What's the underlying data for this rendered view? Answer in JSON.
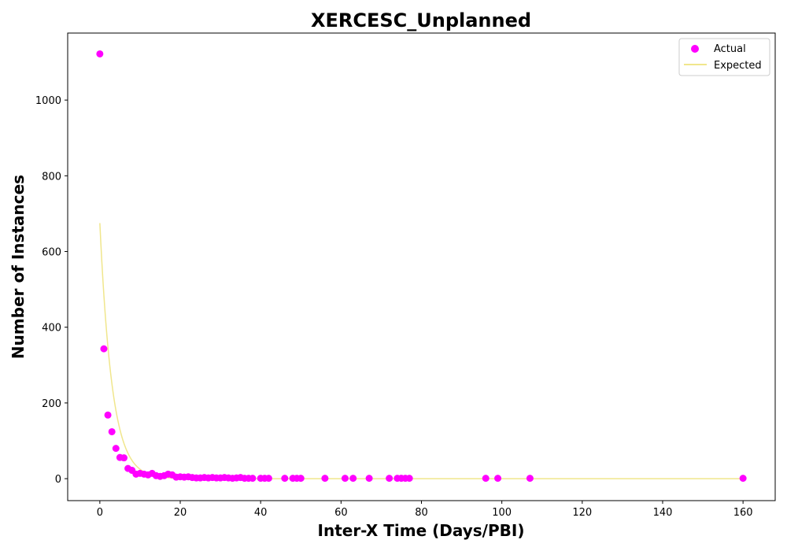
{
  "chart_data": {
    "type": "scatter",
    "title": "XERCESC_Unplanned",
    "xlabel": "Inter-X Time (Days/PBI)",
    "ylabel": "Number of Instances",
    "xlim": [
      -8,
      168
    ],
    "ylim": [
      -58,
      1177
    ],
    "xticks": [
      0,
      20,
      40,
      60,
      80,
      100,
      120,
      140,
      160
    ],
    "yticks": [
      0,
      200,
      400,
      600,
      800,
      1000
    ],
    "grid": false,
    "legend": {
      "placement": "top-right"
    },
    "series": [
      {
        "name": "Actual",
        "kind": "scatter",
        "color": "#ff00ff",
        "x": [
          0,
          1,
          2,
          3,
          4,
          5,
          6,
          7,
          8,
          9,
          10,
          11,
          12,
          13,
          14,
          15,
          16,
          17,
          18,
          19,
          20,
          21,
          22,
          23,
          24,
          25,
          26,
          27,
          28,
          29,
          30,
          31,
          32,
          33,
          34,
          35,
          36,
          37,
          38,
          40,
          41,
          42,
          46,
          48,
          49,
          50,
          56,
          61,
          63,
          67,
          72,
          74,
          75,
          76,
          77,
          96,
          99,
          107,
          160
        ],
        "y": [
          1122,
          343,
          168,
          124,
          80,
          56,
          55,
          27,
          22,
          12,
          14,
          12,
          10,
          14,
          8,
          6,
          8,
          12,
          10,
          4,
          5,
          4,
          5,
          3,
          2,
          2,
          3,
          2,
          3,
          2,
          2,
          3,
          2,
          1,
          2,
          3,
          1,
          1,
          1,
          1,
          1,
          1,
          1,
          1,
          1,
          1,
          1,
          1,
          1,
          1,
          1,
          1,
          1,
          1,
          1,
          1,
          1,
          1,
          1
        ]
      },
      {
        "name": "Expected",
        "kind": "line",
        "color": "#f0e68c",
        "model": {
          "a": 675,
          "b": 0.33
        },
        "x_range": [
          0,
          160
        ]
      }
    ]
  }
}
